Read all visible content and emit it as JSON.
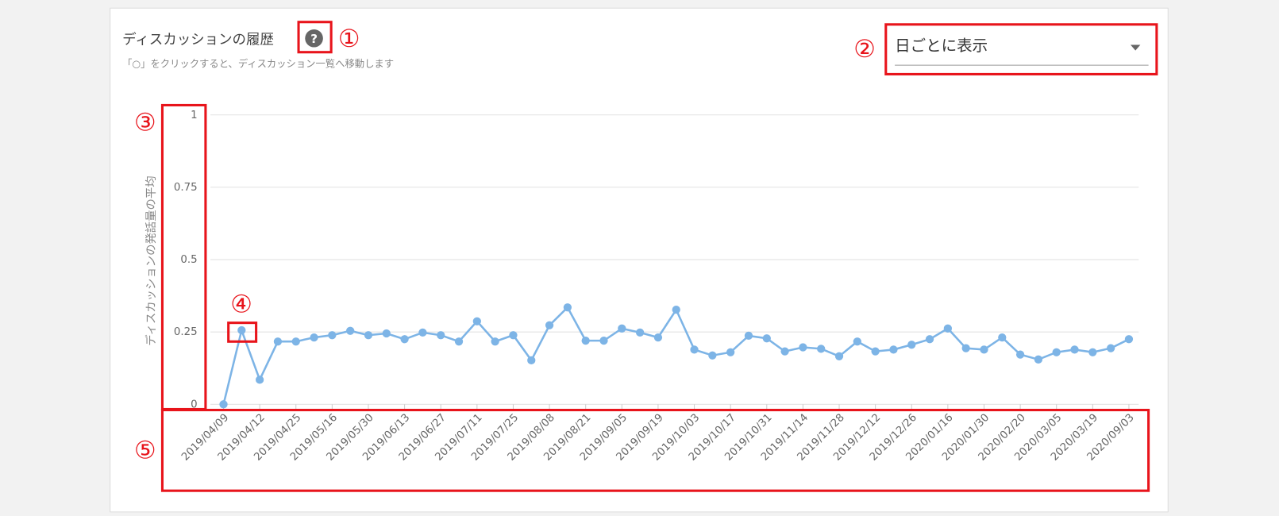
{
  "header": {
    "title": "ディスカッションの履歴",
    "help_icon": "?",
    "subtitle": "「○」をクリックすると、ディスカッション一覧へ移動します"
  },
  "dropdown": {
    "selected": "日ごとに表示"
  },
  "annotations": [
    "①",
    "②",
    "③",
    "④",
    "⑤"
  ],
  "chart_data": {
    "type": "line",
    "y_label": "ディスカッションの発話量の平均",
    "categories": [
      "2019/04/09",
      null,
      "2019/04/12",
      null,
      "2019/04/25",
      null,
      "2019/05/16",
      null,
      "2019/05/30",
      null,
      "2019/06/13",
      null,
      "2019/06/27",
      null,
      "2019/07/11",
      null,
      "2019/07/25",
      null,
      "2019/08/08",
      null,
      "2019/08/21",
      null,
      "2019/09/05",
      null,
      "2019/09/19",
      null,
      "2019/10/03",
      null,
      "2019/10/17",
      null,
      "2019/10/31",
      null,
      "2019/11/14",
      null,
      "2019/11/28",
      null,
      "2019/12/12",
      null,
      "2019/12/26",
      null,
      "2020/01/16",
      null,
      "2020/01/30",
      null,
      "2020/02/20",
      null,
      "2020/03/05",
      null,
      "2020/03/19",
      null,
      "2020/09/03"
    ],
    "values": [
      0,
      0.256,
      0.085,
      0.217,
      0.217,
      0.231,
      0.239,
      0.254,
      0.239,
      0.245,
      0.225,
      0.248,
      0.239,
      0.217,
      0.287,
      0.217,
      0.239,
      0.152,
      0.273,
      0.335,
      0.22,
      0.22,
      0.262,
      0.248,
      0.231,
      0.327,
      0.189,
      0.169,
      0.18,
      0.237,
      0.228,
      0.183,
      0.197,
      0.192,
      0.166,
      0.217,
      0.183,
      0.189,
      0.206,
      0.225,
      0.262,
      0.194,
      0.189,
      0.231,
      0.172,
      0.155,
      0.18,
      0.189,
      0.18,
      0.194,
      0.225
    ],
    "color": "#7db4e6",
    "ylim": [
      0,
      1
    ],
    "yticks": [
      0,
      0.25,
      0.5,
      0.75,
      1
    ],
    "grid": true
  }
}
